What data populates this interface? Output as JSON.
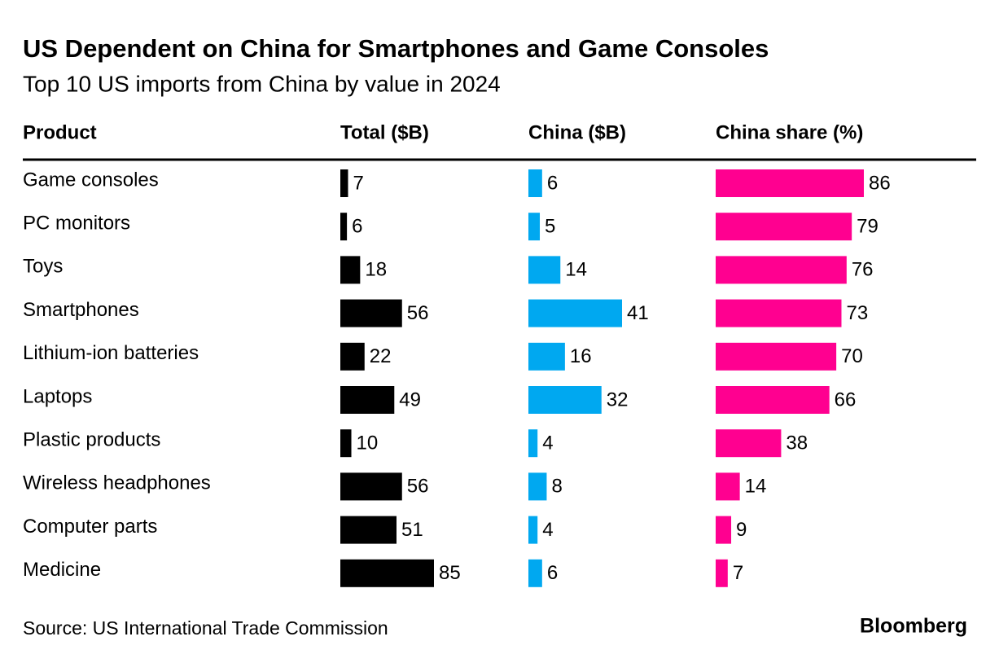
{
  "chart_data": {
    "type": "table-bars",
    "title": "US Dependent on China for Smartphones and Game Consoles",
    "subtitle": "Top 10 US imports from China by value in 2024",
    "category_header": "Product",
    "categories": [
      "Game consoles",
      "PC monitors",
      "Toys",
      "Smartphones",
      "Lithium-ion batteries",
      "Laptops",
      "Plastic products",
      "Wireless headphones",
      "Computer parts",
      "Medicine"
    ],
    "series": [
      {
        "name": "Total ($B)",
        "color": "#000000",
        "values": [
          7,
          6,
          18,
          56,
          22,
          49,
          10,
          56,
          51,
          85
        ]
      },
      {
        "name": "China ($B)",
        "color": "#00a8f0",
        "values": [
          6,
          5,
          14,
          41,
          16,
          32,
          4,
          8,
          4,
          6
        ]
      },
      {
        "name": "China share (%)",
        "color": "#ff0090",
        "values": [
          86,
          79,
          76,
          73,
          70,
          66,
          38,
          14,
          9,
          7
        ]
      }
    ],
    "source": "Source: US International Trade Commission",
    "brand": "Bloomberg"
  }
}
